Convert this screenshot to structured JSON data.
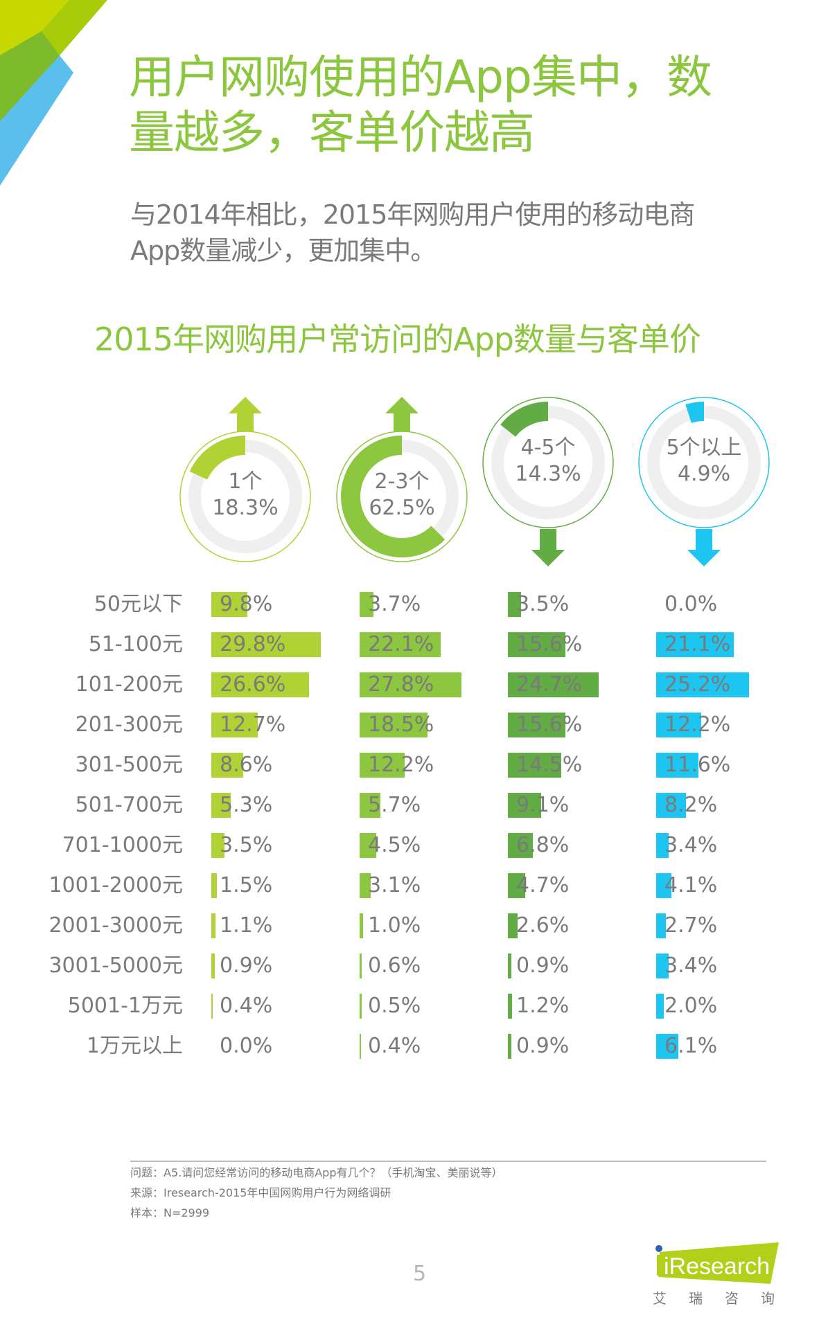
{
  "header": {
    "title_line1": "用户网购使用的App集中，数",
    "title_line2": "量越多，客单价越高",
    "subtitle_line1": "与2014年相比，2015年网购用户使用的移动电商",
    "subtitle_line2": "App数量减少，更加集中。"
  },
  "colors": {
    "title_green": "#8cc63f",
    "text_gray": "#7a7a7a",
    "ring_gray": "#efefef",
    "series": [
      "#b0d235",
      "#8dc63f",
      "#62ac45",
      "#1dc6f0"
    ]
  },
  "chart_data": {
    "type": "bar",
    "title": "2015年网购用户常访问的App数量与客单价",
    "donuts": [
      {
        "name": "1个",
        "value": 18.3,
        "value_label": "18.3%",
        "trend": "up",
        "trend_icon": "arrow-up-icon"
      },
      {
        "name": "2-3个",
        "value": 62.5,
        "value_label": "62.5%",
        "trend": "up",
        "trend_icon": "arrow-up-icon"
      },
      {
        "name": "4-5个",
        "value": 14.3,
        "value_label": "14.3%",
        "trend": "down",
        "trend_icon": "arrow-down-icon"
      },
      {
        "name": "5个以上",
        "value": 4.9,
        "value_label": "4.9%",
        "trend": "down",
        "trend_icon": "arrow-down-icon"
      }
    ],
    "categories": [
      "50元以下",
      "51-100元",
      "101-200元",
      "201-300元",
      "301-500元",
      "501-700元",
      "701-1000元",
      "1001-2000元",
      "2001-3000元",
      "3001-5000元",
      "5001-1万元",
      "1万元以上"
    ],
    "series": [
      {
        "name": "1个",
        "values": [
          9.8,
          29.8,
          26.6,
          12.7,
          8.6,
          5.3,
          3.5,
          1.5,
          1.1,
          0.9,
          0.4,
          0.0
        ],
        "labels": [
          "9.8%",
          "29.8%",
          "26.6%",
          "12.7%",
          "8.6%",
          "5.3%",
          "3.5%",
          "1.5%",
          "1.1%",
          "0.9%",
          "0.4%",
          "0.0%"
        ]
      },
      {
        "name": "2-3个",
        "values": [
          3.7,
          22.1,
          27.8,
          18.5,
          12.2,
          5.7,
          4.5,
          3.1,
          1.0,
          0.6,
          0.5,
          0.4
        ],
        "labels": [
          "3.7%",
          "22.1%",
          "27.8%",
          "18.5%",
          "12.2%",
          "5.7%",
          "4.5%",
          "3.1%",
          "1.0%",
          "0.6%",
          "0.5%",
          "0.4%"
        ]
      },
      {
        "name": "4-5个",
        "values": [
          3.5,
          15.6,
          24.7,
          15.6,
          14.5,
          9.1,
          6.8,
          4.7,
          2.6,
          0.9,
          1.2,
          0.9
        ],
        "labels": [
          "3.5%",
          "15.6%",
          "24.7%",
          "15.6%",
          "14.5%",
          "9.1%",
          "6.8%",
          "4.7%",
          "2.6%",
          "0.9%",
          "1.2%",
          "0.9%"
        ]
      },
      {
        "name": "5个以上",
        "values": [
          0.0,
          21.1,
          25.2,
          12.2,
          11.6,
          8.2,
          3.4,
          4.1,
          2.7,
          3.4,
          2.0,
          6.1
        ],
        "labels": [
          "0.0%",
          "21.1%",
          "25.2%",
          "12.2%",
          "11.6%",
          "8.2%",
          "3.4%",
          "4.1%",
          "2.7%",
          "3.4%",
          "2.0%",
          "6.1%"
        ]
      }
    ],
    "xlabel": "",
    "ylabel": "",
    "unit": "%"
  },
  "footer": {
    "question": "问题：A5.请问您经常访问的移动电商App有几个？（手机淘宝、美丽说等）",
    "source": "来源：Iresearch-2015年中国网购用户行为网络调研",
    "sample": "样本：N=2999",
    "page_number": "5",
    "logo_text": "iResearch",
    "logo_cn": [
      "艾",
      "瑞",
      "咨",
      "询"
    ]
  }
}
